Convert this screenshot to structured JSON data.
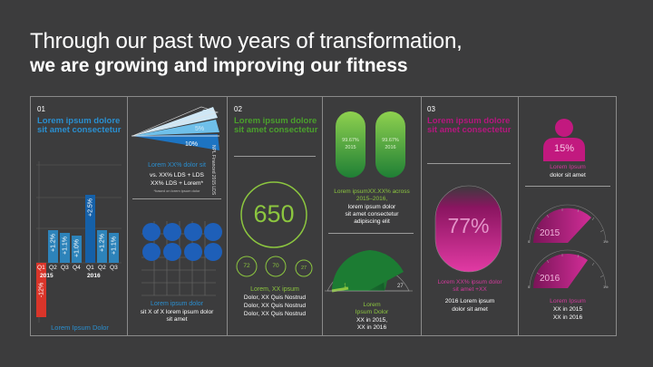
{
  "title": {
    "line1": "Through our past two years of transformation,",
    "line2": "we are growing and improving our fitness"
  },
  "colors": {
    "blue": "#2a8fd0",
    "blue_dark": "#1560a8",
    "green": "#4aa02c",
    "green_light": "#8cc63f",
    "magenta": "#b5177e",
    "red": "#d9352a",
    "panel_bg": "#3c3c3d"
  },
  "section1": {
    "number": "01",
    "heading": "Lorem ipsum dolore sit amet consectetur",
    "footer": "Lorem Ipsum Dolor",
    "chart_data": {
      "type": "bar",
      "categories": [
        "Q1",
        "Q2",
        "Q3",
        "Q4",
        "Q1",
        "Q2",
        "Q3"
      ],
      "years": [
        "2015",
        "2016"
      ],
      "values": [
        -12,
        1.2,
        1.1,
        1.0,
        2.5,
        1.2,
        1.1
      ],
      "labels": [
        "-12%",
        "+1.2%",
        "+1.1%",
        "+1.0%",
        "+2.5%",
        "+1.2%",
        "+1.1%"
      ]
    }
  },
  "wedge": {
    "labels": [
      "2%",
      "5%",
      "10%"
    ],
    "rotated_caption": "NPL Financed 2015 LDS",
    "text_heading": "Lorem XX% dolor sit",
    "text_line1": "vs. XX% LDS + LDS",
    "text_line2": "XX% LDS + Lorem*",
    "footnote": "*based on lorem ipsum dolor"
  },
  "grid_block": {
    "heading": "Lorem ipsum dolor",
    "line1": "sit X of X lorem ipsum dolor",
    "line2": "sit amet"
  },
  "section2": {
    "number": "02",
    "heading": "Lorem ipsum dolore sit amet consectetur",
    "big_number": "650",
    "circles": [
      "72",
      "70",
      "27"
    ],
    "caption_heading": "Lorem, XX ipsum",
    "caption_lines": [
      "Dolor, XX Quis Nostrud",
      "Dolor, XX Quis Nostrud",
      "Dolor, XX Quis Nostrud"
    ]
  },
  "pills": {
    "values": [
      "99.67%",
      "99.67%"
    ],
    "years": [
      "2015",
      "2016"
    ],
    "heading1": "Lorem ipsumXX.XX% across",
    "heading2": "2015–2016,",
    "line1": "lorem ipsum dolor",
    "line2": "sit amet consectetur",
    "line3": "adipiscing elit"
  },
  "gauge_green": {
    "min_label": "1",
    "max_label": "27",
    "caption_heading1": "Lorem",
    "caption_heading2": "Ipsum Dolor",
    "line1": "XX in 2015,",
    "line2": "XX in 2016"
  },
  "section3": {
    "number": "03",
    "heading": "Lorem ipsum dolore sit amet consectetur",
    "big_percent": "77%",
    "caption_heading1": "Lorem XX%  ipsum dolor",
    "caption_heading2": "sit amet +XX",
    "line1": "2016 Lorem ipsum",
    "line2": "dolor sit amet"
  },
  "person": {
    "percent": "15%",
    "heading": "Lorem Ipsum",
    "line1": "dolor sit amet"
  },
  "gauges_magenta": {
    "year1": "2015",
    "year2": "2016",
    "scale_min": "0",
    "scale_max": "1½",
    "caption_heading": "Lorem Ipsum",
    "line1": "XX in 2015",
    "line2": "XX in 2016"
  }
}
